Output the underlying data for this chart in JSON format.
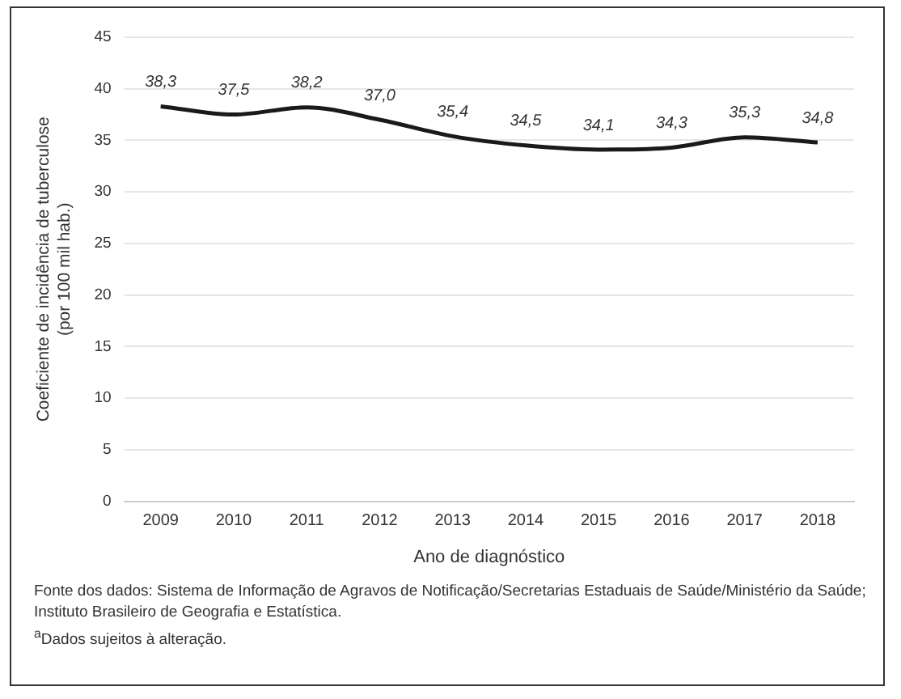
{
  "chart_data": {
    "type": "line",
    "xlabel": "Ano de diagnóstico",
    "ylabel": "Coeficiente de incidência de tuberculose (por 100 mil hab.)",
    "categories": [
      "2009",
      "2010",
      "2011",
      "2012",
      "2013",
      "2014",
      "2015",
      "2016",
      "2017",
      "2018"
    ],
    "series": [
      {
        "color": "#1a1a1a",
        "values": [
          38.3,
          37.5,
          38.2,
          37.0,
          35.4,
          34.5,
          34.1,
          34.3,
          35.3,
          34.8
        ],
        "value_labels": [
          "38,3",
          "37,5",
          "38,2",
          "37,0",
          "35,4",
          "34,5",
          "34,1",
          "34,3",
          "35,3",
          "34,8"
        ]
      }
    ],
    "ylim": [
      0,
      45
    ],
    "yticks": [
      0,
      5,
      10,
      15,
      20,
      25,
      30,
      35,
      40,
      45
    ],
    "grid": "y",
    "legend": false,
    "marker": "none",
    "annotations": [
      "Fonte dos dados: Sistema de Informação de Agravos de Notificação/Secretarias Estaduais de Saúde/Ministério da Saúde; Instituto Brasileiro de Geografia e Estatística.",
      "$^{a}$Dados sujeitos à alteração."
    ]
  }
}
